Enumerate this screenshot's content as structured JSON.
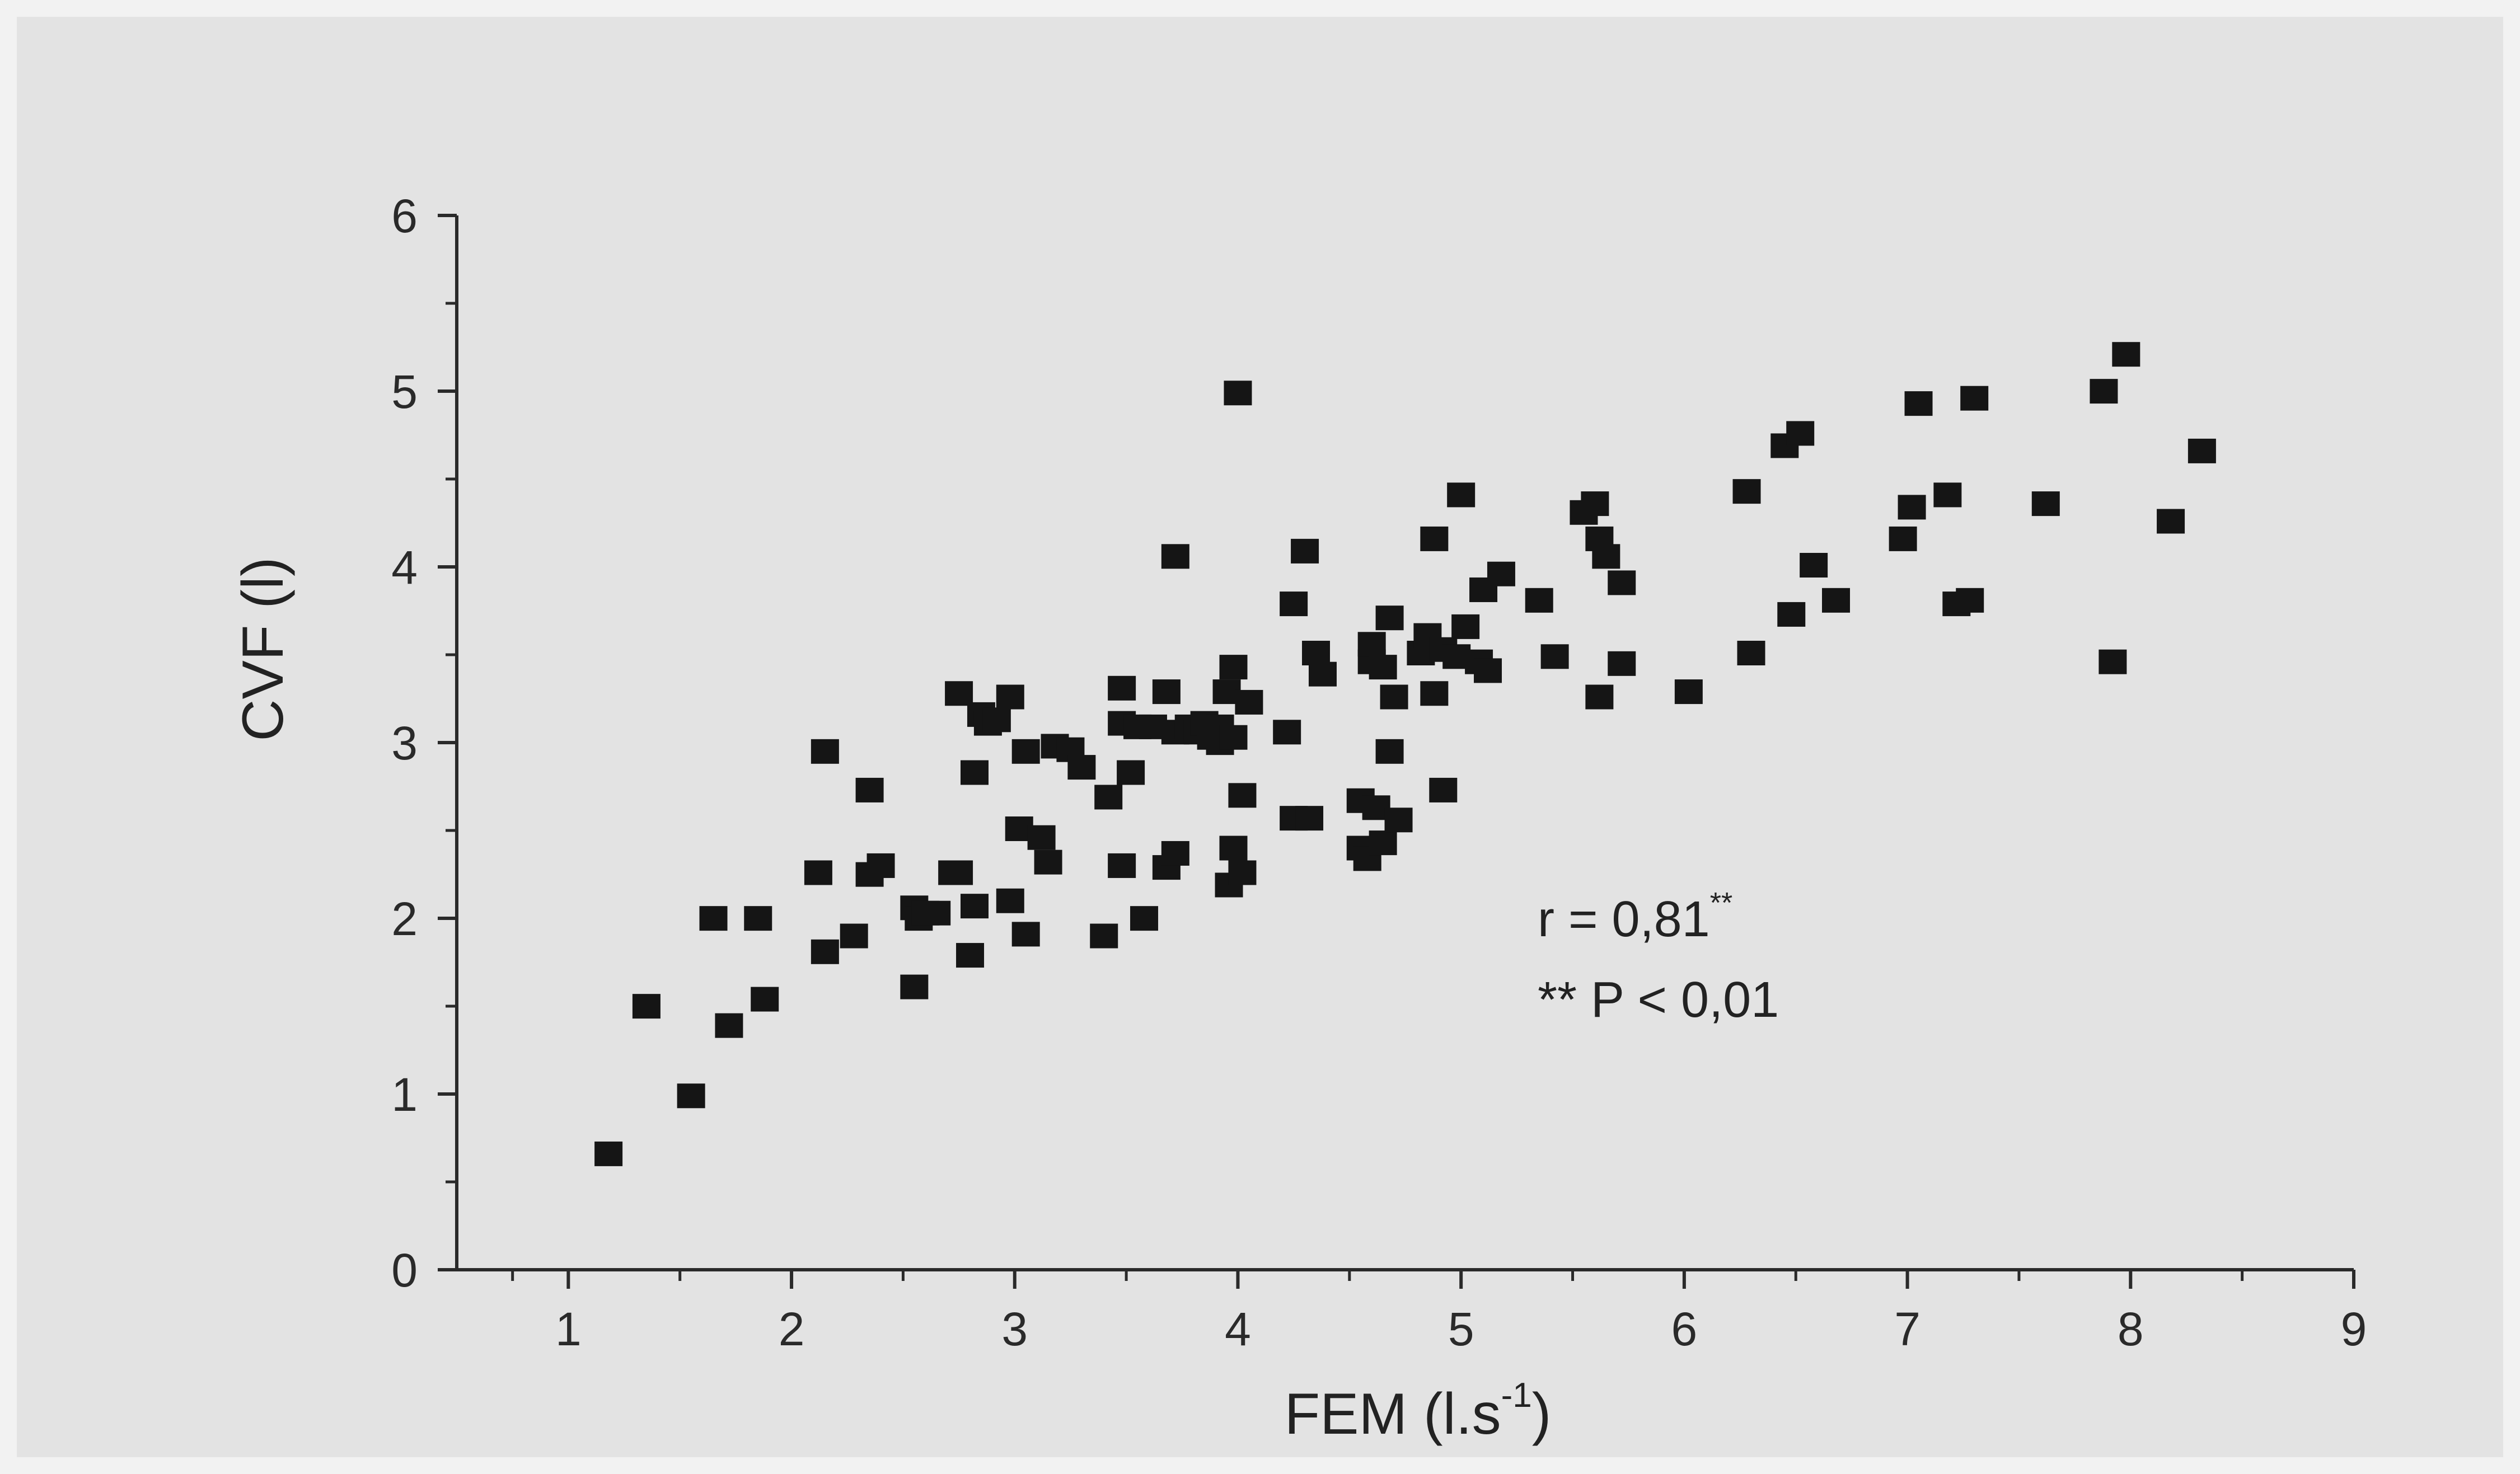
{
  "colors": {
    "background": "#e3e3e3",
    "marker": "#151515",
    "axis": "#2a2a2a",
    "text": "#222222"
  },
  "chart_data": {
    "type": "scatter",
    "xlabel": "FEM (l.s",
    "xlabel_sup": "-1",
    "xlabel_close": ")",
    "ylabel": "CVF (l)",
    "xlim": [
      0.5,
      9
    ],
    "ylim": [
      0,
      6
    ],
    "xticks": [
      "1",
      "2",
      "3",
      "4",
      "5",
      "6",
      "7",
      "8",
      "9"
    ],
    "yticks": [
      "0",
      "1",
      "2",
      "3",
      "4",
      "5",
      "6"
    ],
    "annotation_r": "r = 0,81",
    "annotation_r_sup": "**",
    "annotation_p": "** P < 0,01",
    "marker": "square",
    "grid": false,
    "series": [
      {
        "points": [
          [
            1.18,
            0.65
          ],
          [
            1.35,
            1.49
          ],
          [
            1.55,
            0.98
          ],
          [
            1.65,
            1.99
          ],
          [
            1.72,
            1.38
          ],
          [
            1.85,
            1.99
          ],
          [
            1.88,
            1.53
          ],
          [
            2.12,
            2.25
          ],
          [
            2.15,
            2.94
          ],
          [
            2.15,
            1.8
          ],
          [
            2.28,
            1.89
          ],
          [
            2.35,
            2.24
          ],
          [
            2.35,
            2.72
          ],
          [
            2.4,
            2.29
          ],
          [
            2.55,
            2.05
          ],
          [
            2.55,
            1.6
          ],
          [
            2.57,
            1.99
          ],
          [
            2.6,
            2.02
          ],
          [
            2.65,
            2.02
          ],
          [
            2.72,
            2.25
          ],
          [
            2.75,
            2.25
          ],
          [
            2.8,
            1.78
          ],
          [
            2.82,
            2.06
          ],
          [
            2.82,
            2.82
          ],
          [
            2.75,
            3.27
          ],
          [
            2.85,
            3.15
          ],
          [
            2.88,
            3.1
          ],
          [
            2.92,
            3.12
          ],
          [
            2.98,
            3.25
          ],
          [
            2.98,
            2.09
          ],
          [
            3.02,
            2.5
          ],
          [
            3.05,
            2.94
          ],
          [
            3.05,
            1.9
          ],
          [
            3.12,
            2.45
          ],
          [
            3.15,
            2.31
          ],
          [
            3.18,
            2.97
          ],
          [
            3.25,
            2.95
          ],
          [
            3.3,
            2.85
          ],
          [
            3.4,
            1.89
          ],
          [
            3.42,
            2.68
          ],
          [
            3.48,
            2.29
          ],
          [
            3.48,
            3.3
          ],
          [
            3.48,
            3.1
          ],
          [
            3.52,
            2.82
          ],
          [
            3.55,
            3.08
          ],
          [
            3.58,
            1.99
          ],
          [
            3.62,
            3.08
          ],
          [
            3.68,
            3.28
          ],
          [
            3.68,
            2.28
          ],
          [
            3.72,
            2.36
          ],
          [
            3.72,
            3.05
          ],
          [
            3.72,
            4.05
          ],
          [
            3.78,
            3.08
          ],
          [
            3.82,
            3.05
          ],
          [
            3.85,
            3.1
          ],
          [
            3.88,
            3.02
          ],
          [
            3.92,
            2.99
          ],
          [
            3.92,
            3.08
          ],
          [
            3.95,
            3.28
          ],
          [
            3.96,
            2.18
          ],
          [
            3.98,
            3.42
          ],
          [
            3.98,
            3.02
          ],
          [
            3.98,
            2.39
          ],
          [
            4.0,
            4.98
          ],
          [
            4.02,
            2.25
          ],
          [
            4.02,
            2.69
          ],
          [
            4.05,
            3.22
          ],
          [
            4.22,
            3.05
          ],
          [
            4.25,
            3.78
          ],
          [
            4.25,
            2.56
          ],
          [
            4.3,
            4.08
          ],
          [
            4.32,
            2.56
          ],
          [
            4.35,
            3.5
          ],
          [
            4.38,
            3.38
          ],
          [
            4.55,
            2.39
          ],
          [
            4.55,
            2.66
          ],
          [
            4.58,
            2.33
          ],
          [
            4.6,
            3.45
          ],
          [
            4.6,
            3.55
          ],
          [
            4.62,
            2.62
          ],
          [
            4.65,
            3.42
          ],
          [
            4.65,
            2.42
          ],
          [
            4.68,
            3.7
          ],
          [
            4.68,
            2.94
          ],
          [
            4.7,
            3.25
          ],
          [
            4.72,
            2.55
          ],
          [
            4.82,
            3.5
          ],
          [
            4.85,
            3.6
          ],
          [
            4.88,
            4.15
          ],
          [
            4.88,
            3.27
          ],
          [
            4.92,
            3.52
          ],
          [
            4.92,
            2.72
          ],
          [
            4.98,
            3.48
          ],
          [
            5.0,
            4.4
          ],
          [
            5.02,
            3.65
          ],
          [
            5.08,
            3.45
          ],
          [
            5.1,
            3.86
          ],
          [
            5.12,
            3.4
          ],
          [
            5.18,
            3.95
          ],
          [
            5.35,
            3.8
          ],
          [
            5.42,
            3.48
          ],
          [
            5.55,
            4.3
          ],
          [
            5.6,
            4.35
          ],
          [
            5.62,
            4.15
          ],
          [
            5.62,
            3.25
          ],
          [
            5.65,
            4.05
          ],
          [
            5.72,
            3.44
          ],
          [
            5.72,
            3.9
          ],
          [
            6.02,
            3.28
          ],
          [
            6.28,
            4.42
          ],
          [
            6.3,
            3.5
          ],
          [
            6.45,
            4.68
          ],
          [
            6.48,
            3.72
          ],
          [
            6.52,
            4.75
          ],
          [
            6.58,
            4.0
          ],
          [
            6.68,
            3.8
          ],
          [
            6.98,
            4.15
          ],
          [
            7.02,
            4.33
          ],
          [
            7.05,
            4.92
          ],
          [
            7.18,
            4.4
          ],
          [
            7.22,
            3.78
          ],
          [
            7.28,
            3.8
          ],
          [
            7.3,
            4.95
          ],
          [
            7.62,
            4.35
          ],
          [
            7.88,
            4.99
          ],
          [
            7.92,
            3.45
          ],
          [
            7.98,
            5.2
          ],
          [
            8.18,
            4.25
          ],
          [
            8.32,
            4.65
          ]
        ]
      }
    ]
  }
}
